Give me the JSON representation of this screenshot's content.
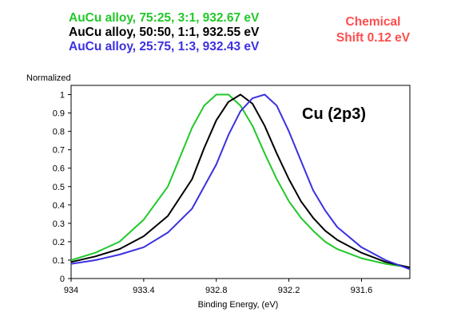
{
  "legend": [
    {
      "text": "AuCu alloy, 75:25, 3:1, 932.67 eV",
      "color": "#22c82a"
    },
    {
      "text": "AuCu alloy, 50:50, 1:1, 932.55 eV",
      "color": "#000000"
    },
    {
      "text": "AuCu alloy, 25:75, 1:3, 932.43 eV",
      "color": "#3b30e0"
    }
  ],
  "annotation": {
    "line1": "Chemical",
    "line2": "Shift 0.12 eV",
    "color": "#ff4d4d"
  },
  "chart_data": {
    "type": "line",
    "xlabel": "Binding Energy, (eV)",
    "ylabel": "Normalized",
    "label": "Cu (2p3)",
    "xlim": [
      934,
      931.2
    ],
    "ylim": [
      0,
      1.05
    ],
    "x_ticks": [
      "934",
      "933.4",
      "932.8",
      "932.2",
      "931.6"
    ],
    "x_tick_values": [
      934,
      933.4,
      932.8,
      932.2,
      931.6
    ],
    "y_ticks": [
      "0",
      "0.1",
      "0.2",
      "0.3",
      "0.4",
      "0.5",
      "0.6",
      "0.7",
      "0.8",
      "0.9",
      "1"
    ],
    "y_tick_values": [
      0,
      0.1,
      0.2,
      0.3,
      0.4,
      0.5,
      0.6,
      0.7,
      0.8,
      0.9,
      1
    ],
    "x_reversed": true,
    "grid": false,
    "series": [
      {
        "color": "#22c82a",
        "x": [
          934,
          933.8,
          933.6,
          933.4,
          933.2,
          933.1,
          933.0,
          932.9,
          932.8,
          932.7,
          932.6,
          932.5,
          932.4,
          932.3,
          932.2,
          932.1,
          932.0,
          931.9,
          931.8,
          931.6,
          931.4,
          931.2
        ],
        "y": [
          0.1,
          0.14,
          0.2,
          0.32,
          0.5,
          0.66,
          0.82,
          0.94,
          1.0,
          1.0,
          0.94,
          0.83,
          0.68,
          0.54,
          0.42,
          0.33,
          0.26,
          0.2,
          0.16,
          0.11,
          0.08,
          0.06
        ]
      },
      {
        "color": "#000000",
        "x": [
          934,
          933.8,
          933.6,
          933.4,
          933.2,
          933.0,
          932.9,
          932.8,
          932.7,
          932.6,
          932.5,
          932.4,
          932.3,
          932.2,
          932.1,
          932.0,
          931.9,
          931.8,
          931.6,
          931.4,
          931.2
        ],
        "y": [
          0.09,
          0.12,
          0.16,
          0.23,
          0.34,
          0.54,
          0.71,
          0.86,
          0.96,
          1.0,
          0.95,
          0.83,
          0.68,
          0.54,
          0.42,
          0.33,
          0.26,
          0.21,
          0.14,
          0.09,
          0.06
        ]
      },
      {
        "color": "#3b30e0",
        "x": [
          934,
          933.8,
          933.6,
          933.4,
          933.2,
          933.0,
          932.8,
          932.7,
          932.6,
          932.5,
          932.4,
          932.3,
          932.2,
          932.1,
          932.0,
          931.9,
          931.8,
          931.6,
          931.4,
          931.2
        ],
        "y": [
          0.08,
          0.1,
          0.13,
          0.17,
          0.25,
          0.38,
          0.62,
          0.78,
          0.91,
          0.98,
          1.0,
          0.94,
          0.8,
          0.64,
          0.48,
          0.37,
          0.28,
          0.17,
          0.1,
          0.05
        ]
      }
    ]
  }
}
